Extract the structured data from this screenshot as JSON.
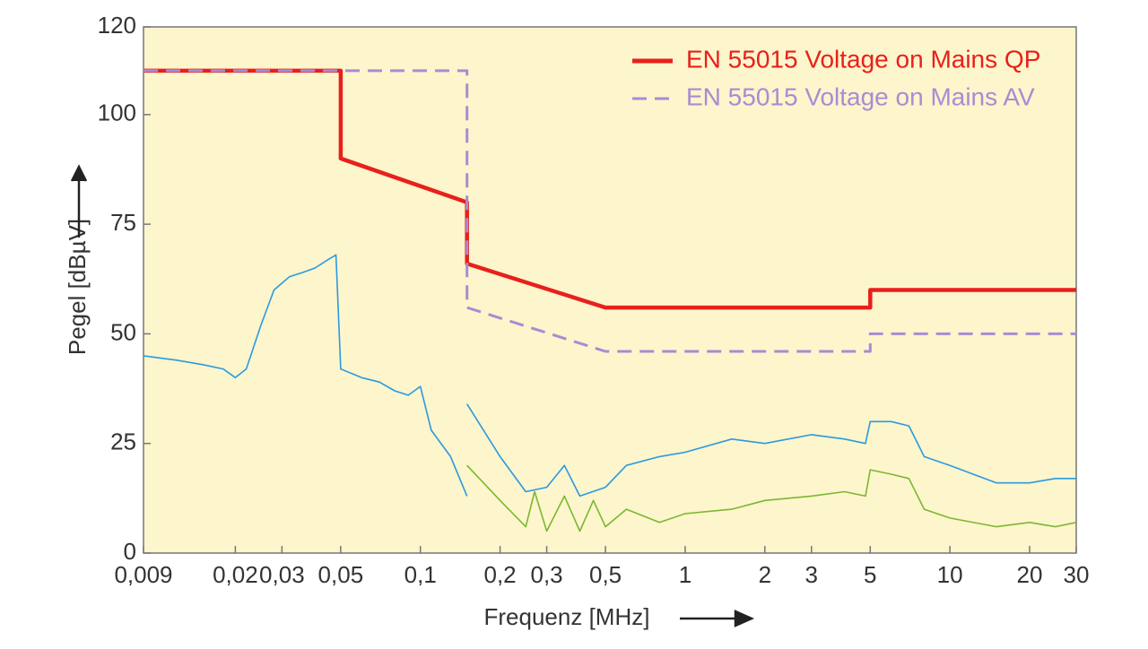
{
  "chart_data": {
    "type": "line",
    "x_label": "Frequenz [MHz]",
    "y_label": "Pegel [dBµV]",
    "x_scale": "log",
    "xlim": [
      0.009,
      30
    ],
    "xticks": [
      {
        "value": 0.009,
        "label": "0,009"
      },
      {
        "value": 0.02,
        "label": "0,02"
      },
      {
        "value": 0.03,
        "label": "0,03"
      },
      {
        "value": 0.05,
        "label": "0,05"
      },
      {
        "value": 0.1,
        "label": "0,1"
      },
      {
        "value": 0.2,
        "label": "0,2"
      },
      {
        "value": 0.3,
        "label": "0,3"
      },
      {
        "value": 0.5,
        "label": "0,5"
      },
      1,
      2,
      3,
      5,
      10,
      20,
      30
    ],
    "ylim": [
      0,
      120
    ],
    "yticks": [
      0,
      25,
      50,
      75,
      100,
      120
    ],
    "legend": "top-right",
    "series": [
      {
        "name": "EN 55015 Voltage on Mains QP",
        "color": "#e8201c",
        "style": "solid",
        "x": [
          0.009,
          0.05,
          0.05,
          0.15,
          0.15,
          0.5,
          5,
          5,
          30
        ],
        "values": [
          110,
          110,
          90,
          80,
          66,
          56,
          56,
          60,
          60
        ]
      },
      {
        "name": "EN 55015 Voltage on Mains AV",
        "color": "#a98bd4",
        "style": "dashed",
        "x": [
          0.009,
          0.15,
          0.15,
          0.5,
          5,
          5,
          30
        ],
        "values": [
          110,
          110,
          56,
          46,
          46,
          50,
          50
        ]
      },
      {
        "color": "#2a9ae0",
        "style": "solid",
        "x": [
          0.009,
          0.012,
          0.015,
          0.018,
          0.02,
          0.022,
          0.025,
          0.028,
          0.032,
          0.036,
          0.04,
          0.045,
          0.048,
          0.05,
          0.06,
          0.07,
          0.08,
          0.09,
          0.1,
          0.11,
          0.13,
          0.15,
          0.15,
          0.15,
          0.2,
          0.25,
          0.3,
          0.35,
          0.4,
          0.5,
          0.6,
          0.8,
          1,
          1.5,
          2,
          3,
          4,
          4.8,
          5,
          6,
          7,
          8,
          10,
          15,
          20,
          25,
          30
        ],
        "values": [
          45,
          44,
          43,
          42,
          40,
          42,
          52,
          60,
          63,
          64,
          65,
          67,
          68,
          42,
          40,
          39,
          37,
          36,
          38,
          28,
          22,
          13,
          null,
          34,
          22,
          14,
          15,
          20,
          13,
          15,
          20,
          22,
          23,
          26,
          25,
          27,
          26,
          25,
          30,
          30,
          29,
          22,
          20,
          16,
          16,
          17,
          17
        ]
      },
      {
        "color": "#7ab830",
        "style": "solid",
        "x": [
          0.15,
          0.2,
          0.25,
          0.27,
          0.3,
          0.35,
          0.4,
          0.45,
          0.5,
          0.6,
          0.8,
          1,
          1.5,
          2,
          3,
          4,
          4.8,
          5,
          6,
          7,
          8,
          10,
          15,
          20,
          25,
          30
        ],
        "values": [
          20,
          12,
          6,
          14,
          5,
          13,
          5,
          12,
          6,
          10,
          7,
          9,
          10,
          12,
          13,
          14,
          13,
          19,
          18,
          17,
          10,
          8,
          6,
          7,
          6,
          7
        ]
      }
    ]
  }
}
